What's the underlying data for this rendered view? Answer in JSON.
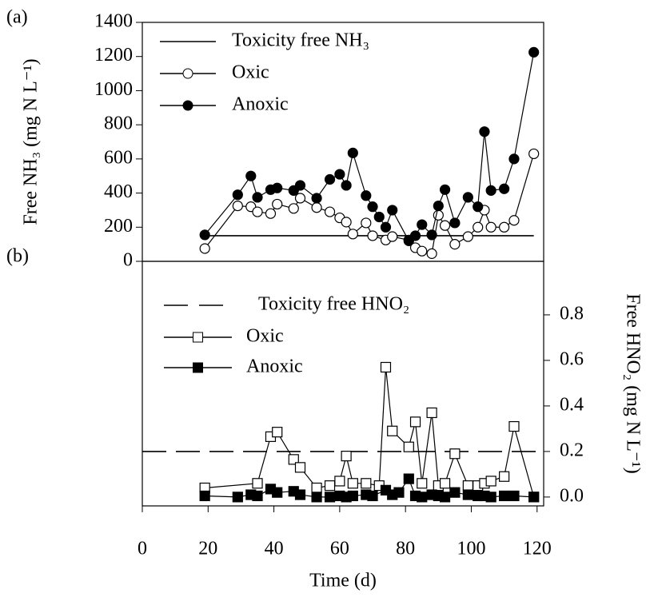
{
  "chart_data": [
    {
      "type": "line",
      "panel_label": "(a)",
      "ylabel": "Free NH₃ (mg N L⁻¹)",
      "y_axis_side": "left",
      "xlim": [
        0,
        122
      ],
      "ylim": [
        0,
        1400
      ],
      "yticks": [
        0,
        200,
        400,
        600,
        800,
        1000,
        1200,
        1400
      ],
      "series": [
        {
          "name": "Toxicity free NH₃",
          "color": "#000000",
          "marker": "none",
          "dash": false,
          "x": [
            19,
            119
          ],
          "values": [
            150,
            150
          ]
        },
        {
          "name": "Oxic",
          "color": "#000000",
          "marker": "circle-open",
          "dash": false,
          "x": [
            19,
            29,
            33,
            35,
            39,
            41,
            46,
            48,
            53,
            57,
            60,
            62,
            64,
            68,
            70,
            74,
            76,
            81,
            83,
            85,
            88,
            90,
            92,
            95,
            99,
            102,
            104,
            106,
            110,
            113,
            119
          ],
          "values": [
            75,
            325,
            320,
            290,
            280,
            335,
            310,
            370,
            315,
            290,
            255,
            230,
            160,
            225,
            150,
            125,
            145,
            125,
            80,
            60,
            45,
            270,
            210,
            100,
            145,
            200,
            300,
            200,
            200,
            240,
            630
          ]
        },
        {
          "name": "Anoxic",
          "color": "#000000",
          "marker": "circle-filled",
          "dash": false,
          "x": [
            19,
            29,
            33,
            35,
            39,
            41,
            46,
            48,
            53,
            57,
            60,
            62,
            64,
            68,
            70,
            72,
            74,
            76,
            81,
            83,
            85,
            88,
            90,
            92,
            95,
            99,
            102,
            104,
            106,
            110,
            113,
            119
          ],
          "values": [
            155,
            390,
            500,
            375,
            420,
            430,
            415,
            445,
            370,
            480,
            510,
            445,
            635,
            385,
            320,
            260,
            200,
            300,
            120,
            150,
            215,
            155,
            325,
            420,
            225,
            375,
            320,
            760,
            415,
            425,
            600,
            1225
          ]
        }
      ]
    },
    {
      "type": "line",
      "panel_label": "(b)",
      "ylabel": "Free HNO₂ (mg N L⁻¹)",
      "xlabel": "Time (d)",
      "y_axis_side": "right",
      "xlim": [
        0,
        122
      ],
      "xticks": [
        0,
        20,
        40,
        60,
        80,
        100,
        120
      ],
      "ylim": [
        -0.039,
        1.035
      ],
      "yticks": [
        {
          "value": 0,
          "label": "0.0"
        },
        0.2,
        0.4,
        0.6,
        0.8
      ],
      "series": [
        {
          "name": "Toxicity free HNO₂",
          "color": "#000000",
          "marker": "none",
          "dash": true,
          "x": [
            0,
            120
          ],
          "values": [
            0.2,
            0.2
          ]
        },
        {
          "name": "Oxic",
          "color": "#000000",
          "marker": "square-open",
          "dash": false,
          "x": [
            19,
            35,
            39,
            41,
            46,
            48,
            53,
            57,
            60,
            62,
            64,
            68,
            72,
            74,
            76,
            81,
            83,
            85,
            88,
            90,
            92,
            95,
            99,
            102,
            104,
            106,
            110,
            113,
            119
          ],
          "values": [
            0.04,
            0.06,
            0.265,
            0.285,
            0.165,
            0.13,
            0.04,
            0.05,
            0.07,
            0.18,
            0.06,
            0.06,
            0.05,
            0.57,
            0.29,
            0.22,
            0.33,
            0.06,
            0.37,
            0.05,
            0.06,
            0.19,
            0.05,
            0.05,
            0.06,
            0.07,
            0.09,
            0.31,
            0.0
          ]
        },
        {
          "name": "Anoxic",
          "color": "#000000",
          "marker": "square-filled",
          "dash": false,
          "x": [
            19,
            29,
            33,
            35,
            39,
            41,
            46,
            48,
            53,
            57,
            60,
            62,
            64,
            68,
            70,
            74,
            76,
            78,
            81,
            83,
            85,
            88,
            90,
            92,
            95,
            99,
            102,
            104,
            106,
            110,
            113,
            119
          ],
          "values": [
            0.005,
            0.0,
            0.01,
            0.005,
            0.035,
            0.02,
            0.025,
            0.01,
            0.0,
            0.0,
            0.005,
            0.0,
            0.005,
            0.01,
            0.005,
            0.03,
            0.01,
            0.02,
            0.08,
            0.005,
            0.0,
            0.01,
            0.005,
            0.0,
            0.02,
            0.01,
            0.005,
            0.005,
            0.0,
            0.005,
            0.005,
            0.0
          ]
        }
      ]
    }
  ]
}
